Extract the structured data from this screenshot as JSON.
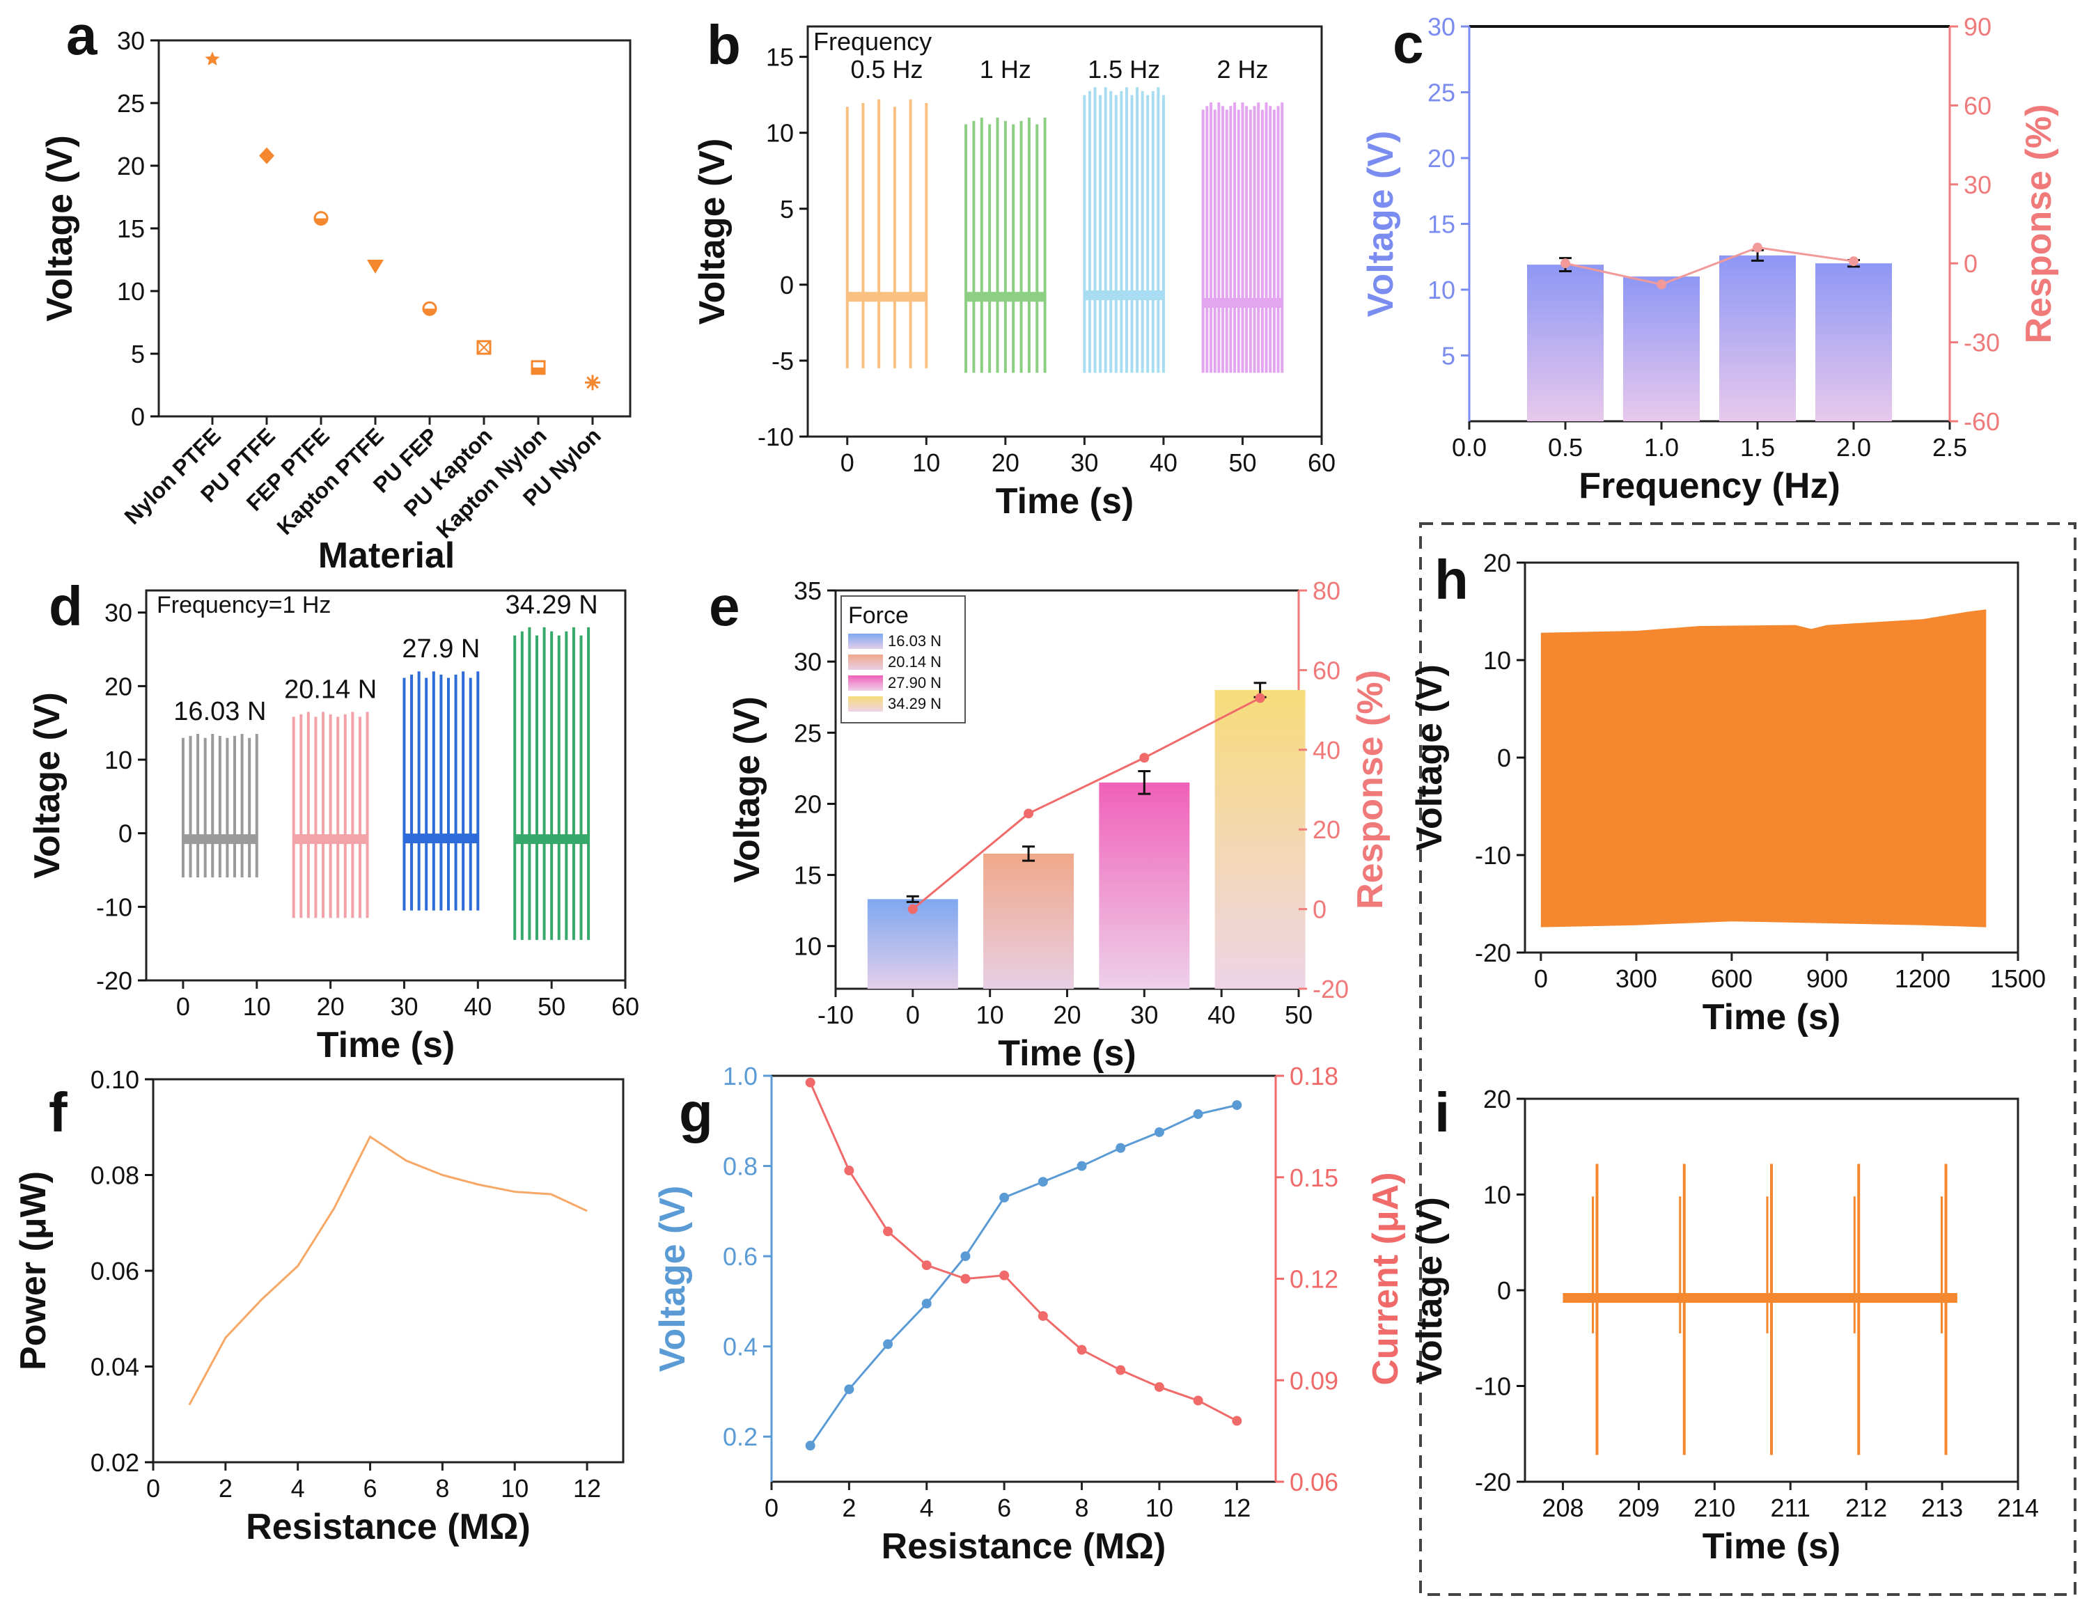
{
  "colors": {
    "orange": "#F5872E",
    "series_b": [
      "#FAC080",
      "#8CCF83",
      "#A8DCF0",
      "#E3A4F0"
    ],
    "series_d": [
      "#9A9A9A",
      "#F3A2A8",
      "#2D6BD9",
      "#35A86A"
    ],
    "blue_axis": "#7B8CF0",
    "red_axis": "#F07A7A",
    "pink_line": "#F29A9A",
    "g_blue": "#5B9BD5",
    "g_red": "#F06A6A",
    "pale_orange": "#F7A866"
  },
  "chart_data": [
    {
      "panel": "a",
      "type": "scatter",
      "xlabel": "Material",
      "ylabel": "Voltage (V)",
      "ylim": [
        0,
        30
      ],
      "yticks": [
        "0",
        "5",
        "10",
        "15",
        "20",
        "25",
        "30"
      ],
      "categories": [
        "Nylon PTFE",
        "PU PTFE",
        "FEP PTFE",
        "Kapton PTFE",
        "PU FEP",
        "PU Kapton",
        "Kapton Nylon",
        "PU Nylon"
      ],
      "values": [
        28.5,
        20.8,
        15.8,
        12.0,
        8.6,
        5.5,
        3.9,
        2.7
      ],
      "markers": [
        "star",
        "diamond",
        "half-circle",
        "triangle-down",
        "half-circle",
        "crossed-square",
        "half-square",
        "asterisk"
      ]
    },
    {
      "panel": "b",
      "type": "line",
      "xlabel": "Time (s)",
      "ylabel": "Voltage (V)",
      "xlim": [
        -5,
        60
      ],
      "ylim": [
        -10,
        17
      ],
      "xticks": [
        "0",
        "10",
        "20",
        "30",
        "40",
        "50",
        "60"
      ],
      "yticks": [
        "-10",
        "-5",
        "0",
        "5",
        "10",
        "15"
      ],
      "legend_title": "Frequency",
      "series": [
        {
          "name": "0.5 Hz",
          "t_start": 0,
          "t_end": 10,
          "n_peaks": 6,
          "peak_max": 12.2,
          "peak_min": -5.5,
          "baseline": -0.8
        },
        {
          "name": "1 Hz",
          "t_start": 15,
          "t_end": 25,
          "n_peaks": 11,
          "peak_max": 11.0,
          "peak_min": -5.8,
          "baseline": -0.8
        },
        {
          "name": "1.5 Hz",
          "t_start": 30,
          "t_end": 40,
          "n_peaks": 16,
          "peak_max": 13.0,
          "peak_min": -5.8,
          "baseline": -0.7
        },
        {
          "name": "2 Hz",
          "t_start": 45,
          "t_end": 55,
          "n_peaks": 21,
          "peak_max": 12.0,
          "peak_min": -5.8,
          "baseline": -1.2
        }
      ]
    },
    {
      "panel": "c",
      "type": "bar",
      "xlabel": "Frequency (Hz)",
      "ylabel": "Voltage (V)",
      "y2label": "Response (%)",
      "xlim": [
        0,
        2.5
      ],
      "ylim": [
        0,
        30
      ],
      "y2lim": [
        -60,
        90
      ],
      "xticks": [
        "0.0",
        "0.5",
        "1.0",
        "1.5",
        "2.0",
        "2.5"
      ],
      "yticks": [
        "5",
        "10",
        "15",
        "20",
        "25",
        "30"
      ],
      "y2ticks": [
        "-60",
        "-30",
        "0",
        "30",
        "60",
        "90"
      ],
      "x": [
        0.5,
        1.0,
        1.5,
        2.0
      ],
      "voltage": [
        11.9,
        11.0,
        12.6,
        12.0
      ],
      "voltage_error": [
        0.5,
        0.0,
        0.4,
        0.25
      ],
      "response": [
        0,
        -8,
        6,
        0.8
      ]
    },
    {
      "panel": "d",
      "type": "line",
      "xlabel": "Time (s)",
      "ylabel": "Voltage (V)",
      "xlim": [
        -5,
        60
      ],
      "ylim": [
        -20,
        33
      ],
      "xticks": [
        "0",
        "10",
        "20",
        "30",
        "40",
        "50",
        "60"
      ],
      "yticks": [
        "-20",
        "-10",
        "0",
        "10",
        "20",
        "30"
      ],
      "annotation": "Frequency=1 Hz",
      "series": [
        {
          "name": "16.03 N",
          "t_start": 0,
          "t_end": 10,
          "n_peaks": 11,
          "peak_max": 13.5,
          "peak_min": -6.0,
          "baseline": -0.8
        },
        {
          "name": "20.14 N",
          "t_start": 15,
          "t_end": 25,
          "n_peaks": 11,
          "peak_max": 16.5,
          "peak_min": -11.5,
          "baseline": -0.8
        },
        {
          "name": "27.9 N",
          "t_start": 30,
          "t_end": 40,
          "n_peaks": 11,
          "peak_max": 22.0,
          "peak_min": -10.5,
          "baseline": -0.7
        },
        {
          "name": "34.29 N",
          "t_start": 45,
          "t_end": 55,
          "n_peaks": 11,
          "peak_max": 28.0,
          "peak_min": -14.5,
          "baseline": -0.8
        }
      ]
    },
    {
      "panel": "e",
      "type": "bar",
      "xlabel": "Time (s)",
      "ylabel": "Voltage (V)",
      "y2label": "Response (%)",
      "xlim": [
        -10,
        50
      ],
      "ylim": [
        7,
        35
      ],
      "y2lim": [
        -20,
        80
      ],
      "xticks": [
        "-10",
        "0",
        "10",
        "20",
        "30",
        "40",
        "50"
      ],
      "yticks": [
        "10",
        "15",
        "20",
        "25",
        "30",
        "35"
      ],
      "y2ticks": [
        "-20",
        "0",
        "20",
        "40",
        "60",
        "80"
      ],
      "legend_title": "Force",
      "legend": [
        "16.03 N",
        "20.14 N",
        "27.90 N",
        "34.29 N"
      ],
      "x": [
        0,
        15,
        30,
        45
      ],
      "voltage": [
        13.3,
        16.5,
        21.5,
        28.0
      ],
      "voltage_error": [
        0.2,
        0.5,
        0.8,
        0.5
      ],
      "response": [
        0,
        24,
        38,
        53
      ]
    },
    {
      "panel": "f",
      "type": "line",
      "xlabel": "Resistance (MΩ)",
      "ylabel": "Power (μW)",
      "xlim": [
        0,
        13
      ],
      "ylim": [
        0.02,
        0.1
      ],
      "xticks": [
        "0",
        "2",
        "4",
        "6",
        "8",
        "10",
        "12"
      ],
      "yticks": [
        "0.02",
        "0.04",
        "0.06",
        "0.08",
        "0.10"
      ],
      "x": [
        1,
        2,
        3,
        4,
        5,
        6,
        7,
        8,
        9,
        10,
        11,
        12
      ],
      "values": [
        0.032,
        0.046,
        0.054,
        0.061,
        0.073,
        0.088,
        0.083,
        0.08,
        0.078,
        0.0765,
        0.076,
        0.0725
      ]
    },
    {
      "panel": "g",
      "type": "line",
      "xlabel": "Resistance (MΩ)",
      "ylabel": "Voltage (V)",
      "y2label": "Current (μA)",
      "xlim": [
        0,
        13
      ],
      "ylim": [
        0.1,
        1.0
      ],
      "y2lim": [
        0.06,
        0.18
      ],
      "xticks": [
        "0",
        "2",
        "4",
        "6",
        "8",
        "10",
        "12"
      ],
      "yticks": [
        "0.2",
        "0.4",
        "0.6",
        "0.8",
        "1.0"
      ],
      "y2ticks": [
        "0.06",
        "0.09",
        "0.12",
        "0.15",
        "0.18"
      ],
      "x": [
        1,
        2,
        3,
        4,
        5,
        6,
        7,
        8,
        9,
        10,
        11,
        12
      ],
      "voltage": [
        0.18,
        0.305,
        0.405,
        0.495,
        0.6,
        0.73,
        0.765,
        0.8,
        0.84,
        0.875,
        0.915,
        0.935
      ],
      "current": [
        0.178,
        0.152,
        0.134,
        0.124,
        0.12,
        0.121,
        0.109,
        0.099,
        0.093,
        0.088,
        0.084,
        0.078
      ]
    },
    {
      "panel": "h",
      "type": "area",
      "xlabel": "Time (s)",
      "ylabel": "Voltage (V)",
      "xlim": [
        -50,
        1500
      ],
      "ylim": [
        -20,
        20
      ],
      "xticks": [
        "0",
        "300",
        "600",
        "900",
        "1200",
        "1500"
      ],
      "yticks": [
        "-20",
        "-10",
        "0",
        "10",
        "20"
      ],
      "upper_envelope": [
        [
          0,
          12.8
        ],
        [
          300,
          13.0
        ],
        [
          500,
          13.5
        ],
        [
          800,
          13.6
        ],
        [
          850,
          13.2
        ],
        [
          900,
          13.6
        ],
        [
          1200,
          14.2
        ],
        [
          1350,
          15.0
        ],
        [
          1400,
          15.2
        ]
      ],
      "lower_envelope": [
        [
          0,
          -17.4
        ],
        [
          300,
          -17.2
        ],
        [
          600,
          -16.8
        ],
        [
          900,
          -17.0
        ],
        [
          1200,
          -17.2
        ],
        [
          1400,
          -17.4
        ]
      ]
    },
    {
      "panel": "i",
      "type": "line",
      "xlabel": "Time (s)",
      "ylabel": "Voltage (V)",
      "xlim": [
        207.5,
        214
      ],
      "ylim": [
        -20,
        20
      ],
      "xticks": [
        "208",
        "209",
        "210",
        "211",
        "212",
        "213",
        "214"
      ],
      "yticks": [
        "-20",
        "-10",
        "0",
        "10",
        "20"
      ],
      "t_start": 208,
      "t_end": 213.2,
      "baseline": -0.8,
      "peaks": [
        208.45,
        209.6,
        210.75,
        211.9,
        213.05
      ],
      "peak_max": 13.2,
      "peak_min": -17.2
    }
  ]
}
